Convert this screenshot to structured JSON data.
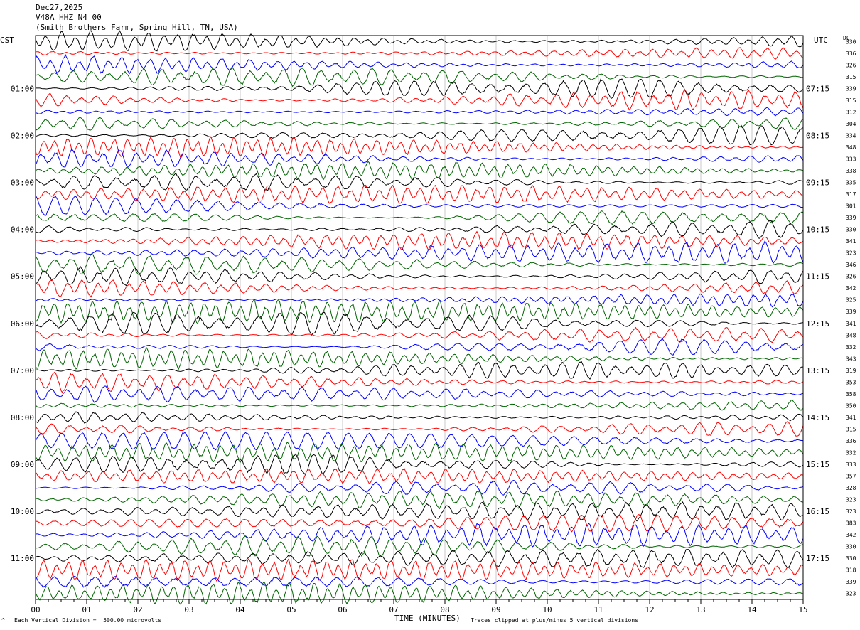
{
  "header": {
    "date": "Dec27,2025",
    "station": "V48A HHZ N4 00",
    "site": "(Smith Brothers Farm, Spring Hill, TN, USA)"
  },
  "left_tz": "CST",
  "right_tz": "UTC",
  "dc_label": "DC",
  "footer": {
    "left_mark": "^",
    "scale": "Each Vertical Division =  500.00 microvolts",
    "clip": "Traces clipped at plus/minus 5 vertical divisions"
  },
  "chart_data": {
    "type": "line",
    "xlabel": "TIME (MINUTES)",
    "xlim": [
      0,
      15
    ],
    "x_ticks": [
      "00",
      "01",
      "02",
      "03",
      "04",
      "05",
      "06",
      "07",
      "08",
      "09",
      "10",
      "11",
      "12",
      "13",
      "14",
      "15"
    ],
    "rows": 48,
    "trace_colors": [
      "#000000",
      "#ff0000",
      "#0000ff",
      "#006400"
    ],
    "left_hour_labels": [
      "01:00",
      "02:00",
      "03:00",
      "04:00",
      "05:00",
      "06:00",
      "07:00",
      "08:00",
      "09:00",
      "10:00",
      "11:00"
    ],
    "right_hour_labels": [
      "07:15",
      "08:15",
      "09:15",
      "10:15",
      "11:15",
      "12:15",
      "13:15",
      "14:15",
      "15:15",
      "16:15",
      "17:15"
    ],
    "dc_offsets": [
      "330",
      "336",
      "326",
      "315",
      "339",
      "315",
      "312",
      "304",
      "334",
      "348",
      "333",
      "338",
      "335",
      "317",
      "301",
      "339",
      "330",
      "341",
      "323",
      "346",
      "326",
      "342",
      "325",
      "339",
      "341",
      "348",
      "332",
      "343",
      "319",
      "353",
      "358",
      "350",
      "341",
      "315",
      "336",
      "332",
      "333",
      "357",
      "328",
      "323",
      "323",
      "383",
      "342",
      "330",
      "330",
      "318",
      "339",
      "323"
    ]
  }
}
